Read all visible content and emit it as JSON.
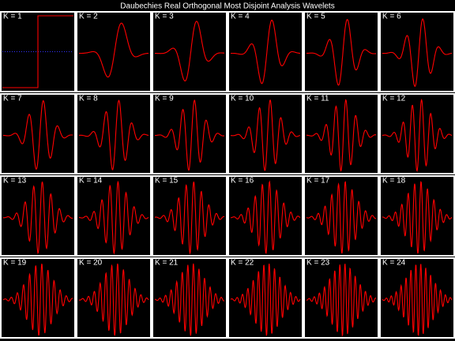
{
  "title": "Daubechies Real Orthogonal Most Disjoint Analysis Wavelets",
  "panels": [
    {
      "label": "K = 1"
    },
    {
      "label": "K = 2"
    },
    {
      "label": "K = 3"
    },
    {
      "label": "K = 4"
    },
    {
      "label": "K = 5"
    },
    {
      "label": "K = 6"
    },
    {
      "label": "K = 7"
    },
    {
      "label": "K = 8"
    },
    {
      "label": "K = 9"
    },
    {
      "label": "K = 10"
    },
    {
      "label": "K = 11"
    },
    {
      "label": "K = 12"
    },
    {
      "label": "K = 13"
    },
    {
      "label": "K = 14"
    },
    {
      "label": "K = 15"
    },
    {
      "label": "K = 16"
    },
    {
      "label": "K = 17"
    },
    {
      "label": "K = 18"
    },
    {
      "label": "K = 19"
    },
    {
      "label": "K = 20"
    },
    {
      "label": "K = 21"
    },
    {
      "label": "K = 22"
    },
    {
      "label": "K = 23"
    },
    {
      "label": "K = 24"
    }
  ]
}
